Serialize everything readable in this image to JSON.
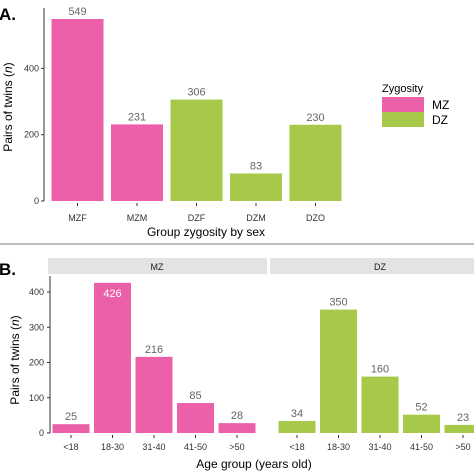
{
  "colors": {
    "MZ": "#ec5fa9",
    "DZ": "#a6c94a",
    "strip": "#e3e3e3",
    "axis": "#333333",
    "divider": "#7b7b7b"
  },
  "chart_data": [
    {
      "panel": "A.",
      "type": "bar",
      "categories": [
        "MZF",
        "MZM",
        "DZF",
        "DZM",
        "DZO"
      ],
      "values": [
        549,
        231,
        306,
        83,
        230
      ],
      "series_of": [
        "MZ",
        "MZ",
        "DZ",
        "DZ",
        "DZ"
      ],
      "xlabel": "Group zygosity by sex",
      "ylabel": "Pairs of twins (n)",
      "ylim": [
        0,
        575
      ],
      "yticks": [
        0,
        200,
        400
      ],
      "grid": false,
      "legend": {
        "title": "Zygosity",
        "entries": [
          "MZ",
          "DZ"
        ],
        "position": "right"
      }
    },
    {
      "panel": "B.",
      "type": "bar",
      "facets": [
        {
          "label": "MZ",
          "series": "MZ",
          "categories": [
            "<18",
            "18-30",
            "31-40",
            "41-50",
            ">50"
          ],
          "values": [
            25,
            426,
            216,
            85,
            28
          ]
        },
        {
          "label": "DZ",
          "series": "DZ",
          "categories": [
            "<18",
            "18-30",
            "31-40",
            "41-50",
            ">50"
          ],
          "values": [
            34,
            350,
            160,
            52,
            23
          ]
        }
      ],
      "xlabel": "Age group (years old)",
      "ylabel": "Pairs of twins (n)",
      "ylim": [
        0,
        440
      ],
      "yticks": [
        0,
        100,
        200,
        300,
        400
      ],
      "grid": false
    }
  ]
}
